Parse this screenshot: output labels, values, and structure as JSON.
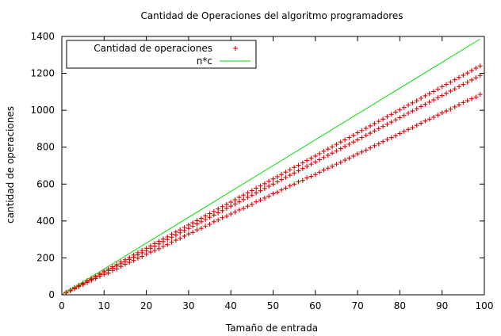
{
  "chart_data": {
    "type": "scatter",
    "title": "Cantidad de Operaciones del algoritmo programadores",
    "xlabel": "Tamaño de entrada",
    "ylabel": "cantidad de operaciones",
    "xlim": [
      0,
      100
    ],
    "ylim": [
      0,
      1400
    ],
    "xticks": [
      0,
      10,
      20,
      30,
      40,
      50,
      60,
      70,
      80,
      90,
      100
    ],
    "yticks": [
      0,
      200,
      400,
      600,
      800,
      1000,
      1200,
      1400
    ],
    "grid": false,
    "legend_position": "top-left",
    "series": [
      {
        "name": "Cantidad de operaciones",
        "kind": "points",
        "marker": "+",
        "color": "#dd0000",
        "points_per_x": 3,
        "x": [
          1,
          2,
          3,
          4,
          5,
          6,
          7,
          8,
          9,
          10,
          11,
          12,
          13,
          14,
          15,
          16,
          17,
          18,
          19,
          20,
          21,
          22,
          23,
          24,
          25,
          26,
          27,
          28,
          29,
          30,
          31,
          32,
          33,
          34,
          35,
          36,
          37,
          38,
          39,
          40,
          41,
          42,
          43,
          44,
          45,
          46,
          47,
          48,
          49,
          50,
          51,
          52,
          53,
          54,
          55,
          56,
          57,
          58,
          59,
          60,
          61,
          62,
          63,
          64,
          65,
          66,
          67,
          68,
          69,
          70,
          71,
          72,
          73,
          74,
          75,
          76,
          77,
          78,
          79,
          80,
          81,
          82,
          83,
          84,
          85,
          86,
          87,
          88,
          89,
          90,
          91,
          92,
          93,
          94,
          95,
          96,
          97,
          98,
          99
        ],
        "y_high": [
          14,
          26,
          40,
          52,
          64,
          78,
          90,
          102,
          115,
          128,
          140,
          152,
          164,
          178,
          190,
          202,
          215,
          228,
          240,
          252,
          265,
          278,
          290,
          302,
          314,
          328,
          340,
          352,
          365,
          378,
          390,
          402,
          414,
          428,
          440,
          452,
          465,
          478,
          490,
          502,
          515,
          528,
          540,
          552,
          565,
          578,
          590,
          602,
          615,
          628,
          640,
          652,
          665,
          678,
          690,
          702,
          715,
          728,
          740,
          752,
          765,
          778,
          790,
          802,
          815,
          828,
          840,
          852,
          864,
          878,
          890,
          902,
          915,
          928,
          940,
          952,
          965,
          978,
          990,
          1002,
          1015,
          1028,
          1040,
          1052,
          1065,
          1078,
          1090,
          1102,
          1115,
          1128,
          1140,
          1152,
          1165,
          1178,
          1190,
          1202,
          1215,
          1228,
          1240
        ],
        "y_mid": [
          12,
          24,
          36,
          48,
          60,
          72,
          84,
          96,
          108,
          120,
          132,
          144,
          156,
          168,
          180,
          192,
          204,
          216,
          228,
          240,
          252,
          264,
          276,
          288,
          300,
          312,
          324,
          336,
          348,
          360,
          372,
          384,
          396,
          408,
          420,
          432,
          444,
          456,
          468,
          480,
          492,
          504,
          516,
          528,
          540,
          552,
          564,
          576,
          588,
          600,
          612,
          624,
          636,
          648,
          660,
          672,
          684,
          696,
          708,
          720,
          732,
          744,
          756,
          768,
          780,
          792,
          804,
          816,
          828,
          840,
          852,
          864,
          876,
          888,
          900,
          912,
          924,
          936,
          948,
          960,
          972,
          984,
          996,
          1008,
          1020,
          1032,
          1044,
          1056,
          1068,
          1080,
          1092,
          1104,
          1116,
          1128,
          1140,
          1152,
          1164,
          1176,
          1188
        ],
        "y_low": [
          10,
          21,
          32,
          44,
          55,
          66,
          78,
          88,
          100,
          110,
          118,
          132,
          140,
          154,
          166,
          176,
          186,
          198,
          208,
          220,
          232,
          240,
          250,
          262,
          272,
          285,
          296,
          306,
          318,
          330,
          338,
          352,
          360,
          372,
          382,
          396,
          405,
          418,
          426,
          438,
          448,
          460,
          468,
          480,
          490,
          504,
          514,
          524,
          534,
          548,
          556,
          568,
          578,
          590,
          600,
          612,
          620,
          634,
          642,
          652,
          664,
          676,
          686,
          696,
          708,
          718,
          730,
          740,
          752,
          764,
          774,
          784,
          796,
          808,
          818,
          830,
          842,
          852,
          862,
          874,
          886,
          896,
          906,
          918,
          930,
          942,
          952,
          962,
          974,
          986,
          996,
          1006,
          1018,
          1030,
          1042,
          1052,
          1062,
          1072,
          1086
        ]
      },
      {
        "name": "n*c",
        "kind": "line",
        "color": "#00dd00",
        "x": [
          0,
          99
        ],
        "y": [
          0,
          1386
        ]
      }
    ]
  }
}
